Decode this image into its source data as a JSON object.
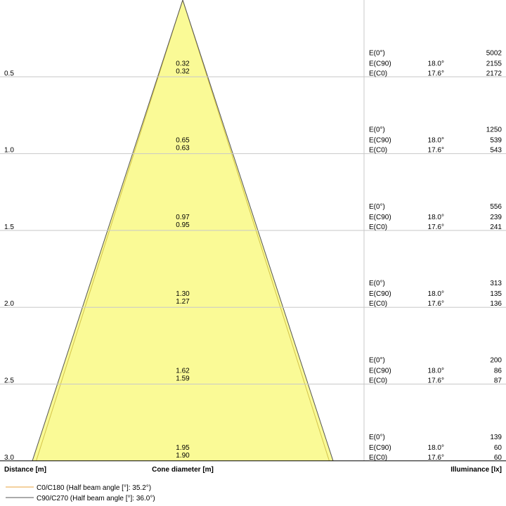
{
  "chart_data": {
    "type": "cone-diagram",
    "distances": [
      "0.5",
      "1.0",
      "1.5",
      "2.0",
      "2.5",
      "3.0"
    ],
    "distance_values": [
      0.5,
      1.0,
      1.5,
      2.0,
      2.5,
      3.0
    ],
    "cone_diameter_c90": [
      "0.32",
      "0.65",
      "0.97",
      "1.30",
      "1.62",
      "1.95"
    ],
    "cone_diameter_c0": [
      "0.32",
      "0.63",
      "0.95",
      "1.27",
      "1.59",
      "1.90"
    ],
    "illuminance": [
      {
        "e0": "5002",
        "ec90": "2155",
        "ec0": "2172"
      },
      {
        "e0": "1250",
        "ec90": "539",
        "ec0": "543"
      },
      {
        "e0": "556",
        "ec90": "239",
        "ec0": "241"
      },
      {
        "e0": "313",
        "ec90": "135",
        "ec0": "136"
      },
      {
        "e0": "200",
        "ec90": "86",
        "ec0": "87"
      },
      {
        "e0": "139",
        "ec90": "60",
        "ec0": "60"
      }
    ],
    "labels": {
      "e0": "E(0°)",
      "ec90": "E(C90)",
      "ec0": "E(C0)",
      "angle_c90": "18.0°",
      "angle_c0": "17.6°"
    },
    "axis": {
      "distance_label": "Distance [m]",
      "cone_label": "Cone diameter [m]",
      "illuminance_label": "Illuminance [lx]"
    },
    "legend": [
      {
        "text": "C0/C180 (Half beam angle [°]: 35.2°)",
        "color": "#e8a33c"
      },
      {
        "text": "C90/C270 (Half beam angle [°]: 36.0°)",
        "color": "#555555"
      }
    ],
    "cone_fill": "#fafa96",
    "c0_line": "#d4c44a",
    "c90_line": "#555555"
  }
}
